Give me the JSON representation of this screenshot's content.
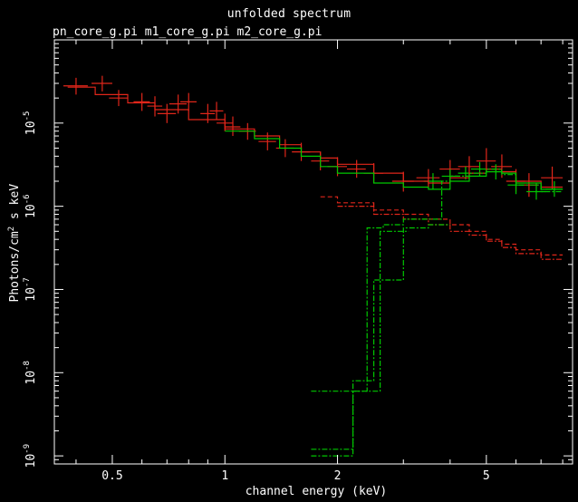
{
  "title": "unfolded spectrum",
  "subtitle": "pn_core_g.pi m1_core_g.pi m2_core_g.pi",
  "xlabel": "channel energy (keV)",
  "ylabel_html": "Photons/cm<sup style='font-size:9px'>2</sup> s keV",
  "colors": {
    "background": "#000000",
    "axes": "#ffffff",
    "pn": "#e0261a",
    "mos": "#00c800"
  },
  "chart_data": {
    "type": "line",
    "xscale": "log",
    "yscale": "log",
    "xlim": [
      0.35,
      8.5
    ],
    "ylim": [
      8e-10,
      0.0001
    ],
    "xticks": [
      {
        "v": 0.5,
        "label": "0.5"
      },
      {
        "v": 1,
        "label": "1"
      },
      {
        "v": 2,
        "label": "2"
      },
      {
        "v": 5,
        "label": "5"
      }
    ],
    "yticks": [
      {
        "v": 1e-05,
        "base": "10",
        "exp": "-5"
      },
      {
        "v": 1e-06,
        "base": "10",
        "exp": "-6"
      },
      {
        "v": 1e-07,
        "base": "10",
        "exp": "-7"
      },
      {
        "v": 1e-08,
        "base": "10",
        "exp": "-8"
      },
      {
        "v": 1e-09,
        "base": "10",
        "exp": "-9"
      }
    ],
    "series": [
      {
        "kind": "points",
        "color": "pn",
        "x": [
          0.4,
          0.47,
          0.52,
          0.6,
          0.65,
          0.7,
          0.75,
          0.8,
          0.9,
          0.95,
          1.0,
          1.05,
          1.15,
          1.3,
          1.45,
          1.6,
          1.8,
          2.0,
          2.25,
          2.5,
          3.0,
          3.5,
          4.0,
          4.5,
          5.0,
          5.5,
          6.0,
          6.5,
          7.5
        ],
        "y": [
          2.8e-05,
          3e-05,
          2e-05,
          1.8e-05,
          1.6e-05,
          1.3e-05,
          1.7e-05,
          1.8e-05,
          1.3e-05,
          1.4e-05,
          1e-05,
          9e-06,
          8e-06,
          6e-06,
          5e-06,
          4.5e-06,
          3.5e-06,
          3e-06,
          2.8e-06,
          2.5e-06,
          2e-06,
          2.2e-06,
          2.8e-06,
          3e-06,
          3.5e-06,
          3e-06,
          2e-06,
          1.8e-06,
          2.2e-06
        ],
        "xerr": [
          0.03,
          0.03,
          0.03,
          0.03,
          0.03,
          0.04,
          0.04,
          0.04,
          0.04,
          0.04,
          0.05,
          0.05,
          0.06,
          0.07,
          0.08,
          0.09,
          0.1,
          0.12,
          0.13,
          0.15,
          0.2,
          0.25,
          0.25,
          0.3,
          0.3,
          0.35,
          0.35,
          0.4,
          0.5
        ],
        "ylo": [
          2.2e-05,
          2.4e-05,
          1.6e-05,
          1.4e-05,
          1.2e-05,
          1e-05,
          1.3e-05,
          1.4e-05,
          1e-05,
          1.1e-05,
          8e-06,
          7e-06,
          6.3e-06,
          4.7e-06,
          3.9e-06,
          3.5e-06,
          2.7e-06,
          2.3e-06,
          2.2e-06,
          1.9e-06,
          1.5e-06,
          1.7e-06,
          2.2e-06,
          2.3e-06,
          2.6e-06,
          2.2e-06,
          1.5e-06,
          1.3e-06,
          1.6e-06
        ],
        "yhi": [
          3.5e-05,
          3.7e-05,
          2.5e-05,
          2.3e-05,
          2.1e-05,
          1.7e-05,
          2.2e-05,
          2.3e-05,
          1.7e-05,
          1.8e-05,
          1.3e-05,
          1.2e-05,
          1e-05,
          7.7e-06,
          6.4e-06,
          5.8e-06,
          4.5e-06,
          3.9e-06,
          3.6e-06,
          3.3e-06,
          2.6e-06,
          2.8e-06,
          3.6e-06,
          4e-06,
          5e-06,
          4.2e-06,
          2.8e-06,
          2.5e-06,
          3e-06
        ]
      },
      {
        "kind": "points",
        "color": "mos",
        "x": [
          3.6,
          4.0,
          4.4,
          4.8,
          5.3,
          6.0,
          6.8,
          7.6
        ],
        "y": [
          2e-06,
          2.3e-06,
          2.5e-06,
          2.8e-06,
          2.6e-06,
          1.8e-06,
          1.5e-06,
          1.6e-06
        ],
        "xerr": [
          0.2,
          0.2,
          0.2,
          0.25,
          0.3,
          0.3,
          0.4,
          0.4
        ],
        "ylo": [
          1.6e-06,
          1.9e-06,
          2.1e-06,
          2.3e-06,
          2.1e-06,
          1.4e-06,
          1.2e-06,
          1.3e-06
        ],
        "yhi": [
          2.5e-06,
          2.8e-06,
          3e-06,
          3.4e-06,
          3.2e-06,
          2.2e-06,
          1.9e-06,
          2e-06
        ]
      },
      {
        "kind": "step",
        "color": "pn",
        "dash": "solid",
        "edges": [
          0.38,
          0.45,
          0.55,
          0.65,
          0.8,
          1.0,
          1.2,
          1.4,
          1.6,
          1.8,
          2.0,
          2.5,
          3.0,
          3.5,
          4.0,
          4.5,
          5.0,
          5.5,
          6.0,
          7.0,
          8.0
        ],
        "values": [
          2.7e-05,
          2.2e-05,
          1.75e-05,
          1.45e-05,
          1.1e-05,
          8.5e-06,
          7e-06,
          5.5e-06,
          4.5e-06,
          3.8e-06,
          3.2e-06,
          2.5e-06,
          2e-06,
          1.9e-06,
          2.2e-06,
          2.5e-06,
          2.8e-06,
          2.6e-06,
          2e-06,
          1.7e-06
        ]
      },
      {
        "kind": "step",
        "color": "mos",
        "dash": "solid",
        "edges": [
          1.0,
          1.2,
          1.4,
          1.6,
          1.8,
          2.0,
          2.5,
          3.0,
          3.5,
          4.0,
          4.5,
          5.0,
          5.5,
          6.0,
          7.0,
          8.0
        ],
        "values": [
          8e-06,
          6.5e-06,
          5e-06,
          4e-06,
          3e-06,
          2.5e-06,
          1.9e-06,
          1.7e-06,
          1.6e-06,
          2e-06,
          2.3e-06,
          2.6e-06,
          2.5e-06,
          1.9e-06,
          1.6e-06
        ]
      },
      {
        "kind": "step",
        "color": "pn",
        "dash": "dash",
        "edges": [
          1.8,
          2.0,
          2.5,
          3.0,
          3.5,
          4.0,
          4.5,
          5.0,
          5.5,
          6.0,
          7.0,
          8.0
        ],
        "values": [
          1.3e-06,
          1.1e-06,
          9e-07,
          8e-07,
          7e-07,
          6e-07,
          5e-07,
          4e-07,
          3.5e-07,
          3e-07,
          2.6e-07
        ]
      },
      {
        "kind": "step",
        "color": "pn",
        "dash": "dashdot",
        "edges": [
          2.0,
          2.5,
          3.0,
          3.5,
          4.0,
          4.5,
          5.0,
          5.5,
          6.0,
          7.0,
          8.0
        ],
        "values": [
          1e-06,
          8e-07,
          7e-07,
          6e-07,
          5e-07,
          4.5e-07,
          3.8e-07,
          3.2e-07,
          2.7e-07,
          2.3e-07
        ]
      },
      {
        "kind": "step",
        "color": "mos",
        "dash": "dashdot",
        "edges": [
          1.7,
          2.4,
          2.65,
          3.0,
          3.8,
          4.0,
          4.5,
          5.0,
          5.5,
          6.0,
          7.0,
          8.0
        ],
        "values": [
          6e-09,
          5.5e-07,
          6e-07,
          7e-07,
          2e-06,
          2.3e-06,
          2.5e-06,
          2.8e-06,
          2.4e-06,
          1.8e-06,
          1.5e-06
        ]
      },
      {
        "kind": "step",
        "color": "mos",
        "dash": "dashdot",
        "edges": [
          1.7,
          2.2,
          2.5,
          3.0,
          3.5,
          4.0
        ],
        "values": [
          1e-09,
          8e-09,
          1.3e-07,
          5.5e-07,
          6e-07
        ]
      },
      {
        "kind": "step",
        "color": "mos",
        "dash": "dashdot",
        "edges": [
          1.7,
          2.2,
          2.6,
          3.1
        ],
        "values": [
          1.2e-09,
          6e-09,
          5e-07
        ]
      }
    ]
  }
}
